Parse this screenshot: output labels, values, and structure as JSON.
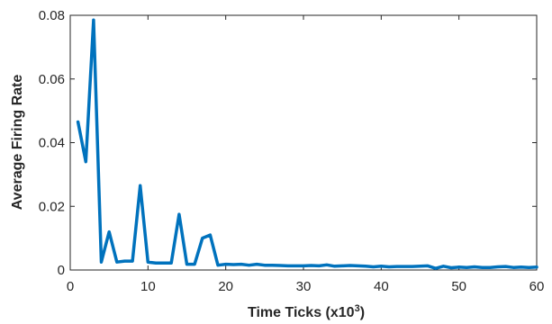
{
  "chart_data": {
    "type": "line",
    "xlabel_main": "Time Ticks (x10",
    "xlabel_sup": "3",
    "xlabel_close": ")",
    "ylabel": "Average Firing Rate",
    "xlim": [
      0,
      60
    ],
    "ylim": [
      0,
      0.08
    ],
    "xticks": [
      0,
      10,
      20,
      30,
      40,
      50,
      60
    ],
    "xtick_labels": [
      "0",
      "10",
      "20",
      "30",
      "40",
      "50",
      "60"
    ],
    "yticks": [
      0,
      0.02,
      0.04,
      0.06,
      0.08
    ],
    "ytick_labels": [
      "0",
      "0.02",
      "0.04",
      "0.06",
      "0.08"
    ],
    "grid": false,
    "series_color": "#0072BD",
    "series": [
      {
        "x": [
          1,
          2,
          3,
          4,
          5,
          6,
          7,
          8,
          9,
          10,
          11,
          12,
          13,
          14,
          15,
          16,
          17,
          18,
          19,
          20,
          21,
          22,
          23,
          24,
          25,
          26,
          27,
          28,
          29,
          30,
          31,
          32,
          33,
          34,
          35,
          36,
          37,
          38,
          39,
          40,
          41,
          42,
          43,
          44,
          45,
          46,
          47,
          48,
          49,
          50,
          51,
          52,
          53,
          54,
          55,
          56,
          57,
          58,
          59,
          60
        ],
        "y": [
          0.0465,
          0.034,
          0.0785,
          0.0025,
          0.012,
          0.0025,
          0.0028,
          0.0028,
          0.0265,
          0.0025,
          0.0022,
          0.0022,
          0.0022,
          0.0175,
          0.0018,
          0.0018,
          0.01,
          0.011,
          0.0015,
          0.0018,
          0.0017,
          0.0018,
          0.0015,
          0.0018,
          0.0015,
          0.0015,
          0.0014,
          0.0013,
          0.0013,
          0.0013,
          0.0014,
          0.0013,
          0.0016,
          0.0012,
          0.0013,
          0.0014,
          0.0013,
          0.0012,
          0.001,
          0.0012,
          0.001,
          0.0011,
          0.0011,
          0.0011,
          0.0012,
          0.0013,
          0.0005,
          0.0012,
          0.0007,
          0.0009,
          0.0008,
          0.001,
          0.0008,
          0.0008,
          0.001,
          0.0011,
          0.0008,
          0.0009,
          0.0008,
          0.0009
        ]
      }
    ]
  }
}
